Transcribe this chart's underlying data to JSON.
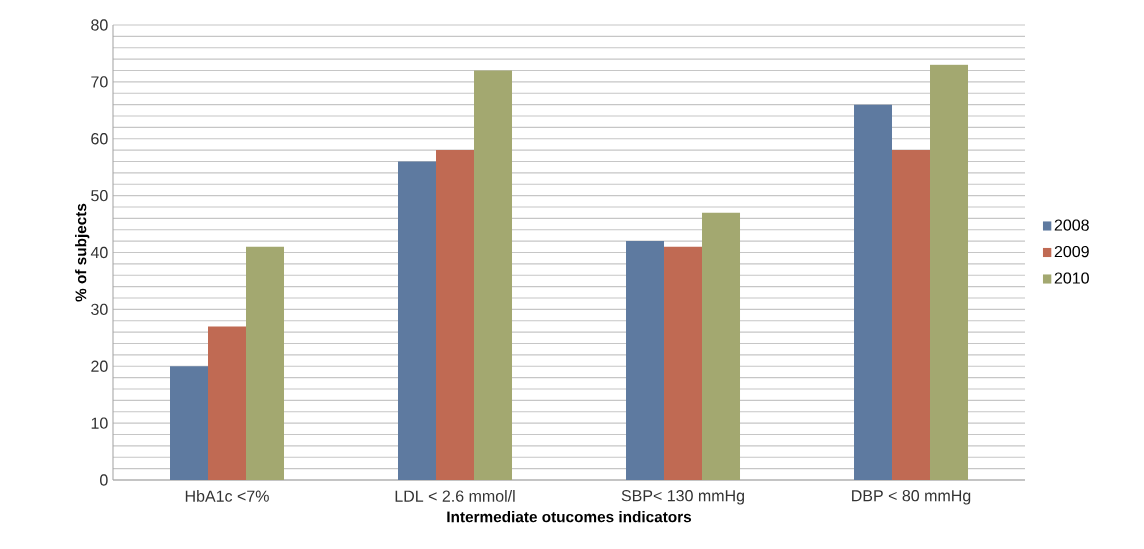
{
  "chart_data": {
    "type": "bar",
    "xlabel": "Intermediate otucomes indicators",
    "ylabel": "% of subjects",
    "categories": [
      "HbA1c <7%",
      "LDL < 2.6 mmol/l",
      "SBP< 130 mmHg",
      "DBP < 80 mmHg"
    ],
    "series": [
      {
        "name": "2008",
        "color": "#5e7aa0",
        "values": [
          20,
          56,
          42,
          66
        ]
      },
      {
        "name": "2009",
        "color": "#c06a53",
        "values": [
          27,
          58,
          41,
          58
        ]
      },
      {
        "name": "2010",
        "color": "#a3a870",
        "values": [
          41,
          72,
          47,
          73
        ]
      }
    ],
    "ylim": [
      0,
      80
    ],
    "yticks": [
      0,
      {
        "value": 2,
        "label": null
      },
      {
        "value": 4,
        "label": null
      },
      {
        "value": 6,
        "label": null
      },
      {
        "value": 8,
        "label": null
      },
      10,
      {
        "value": 12,
        "label": null
      },
      {
        "value": 14,
        "label": null
      },
      {
        "value": 16,
        "label": null
      },
      {
        "value": 18,
        "label": null
      },
      20,
      {
        "value": 22,
        "label": null
      },
      {
        "value": 24,
        "label": null
      },
      {
        "value": 26,
        "label": null
      },
      {
        "value": 28,
        "label": null
      },
      30,
      {
        "value": 32,
        "label": null
      },
      {
        "value": 34,
        "label": null
      },
      {
        "value": 36,
        "label": null
      },
      {
        "value": 38,
        "label": null
      },
      40,
      {
        "value": 42,
        "label": null
      },
      {
        "value": 44,
        "label": null
      },
      {
        "value": 46,
        "label": null
      },
      {
        "value": 48,
        "label": null
      },
      50,
      {
        "value": 52,
        "label": null
      },
      {
        "value": 54,
        "label": null
      },
      {
        "value": 56,
        "label": null
      },
      {
        "value": 58,
        "label": null
      },
      60,
      {
        "value": 62,
        "label": null
      },
      {
        "value": 64,
        "label": null
      },
      {
        "value": 66,
        "label": null
      },
      {
        "value": 68,
        "label": null
      },
      70,
      {
        "value": 72,
        "label": null
      },
      {
        "value": 74,
        "label": null
      },
      {
        "value": 76,
        "label": null
      },
      {
        "value": 78,
        "label": null
      },
      80
    ],
    "grid": "y",
    "legend": "right"
  }
}
